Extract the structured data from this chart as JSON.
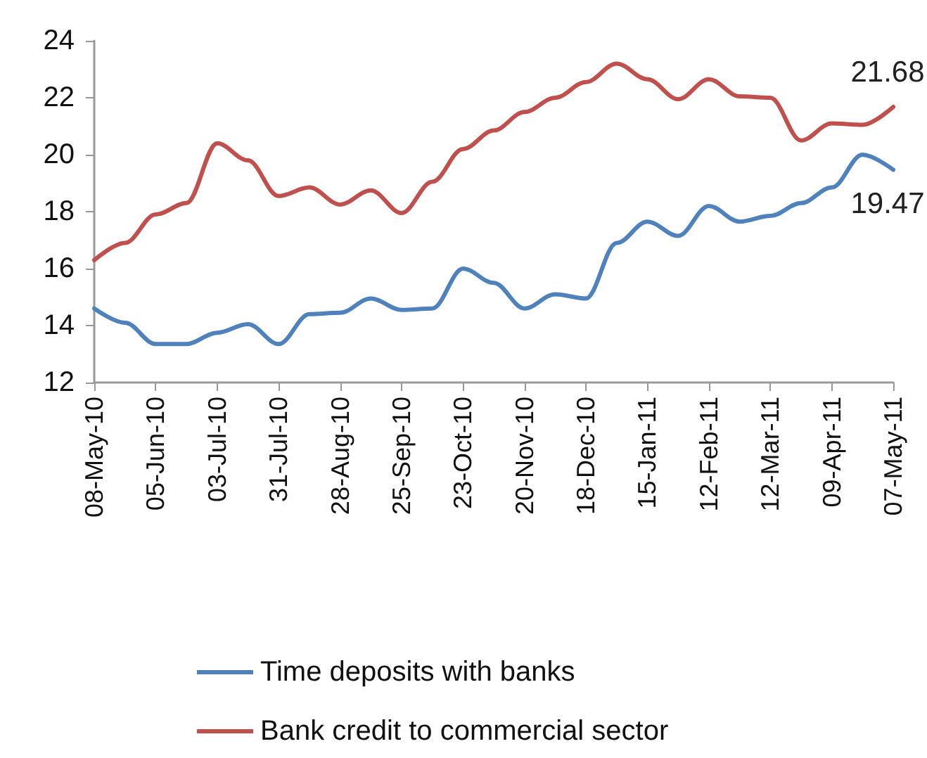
{
  "chart_data": {
    "type": "line",
    "categories": [
      "08-May-10",
      null,
      "05-Jun-10",
      null,
      "03-Jul-10",
      null,
      "31-Jul-10",
      null,
      "28-Aug-10",
      null,
      "25-Sep-10",
      null,
      "23-Oct-10",
      null,
      "20-Nov-10",
      null,
      "18-Dec-10",
      null,
      "15-Jan-11",
      null,
      "12-Feb-11",
      null,
      "12-Mar-11",
      null,
      "09-Apr-11",
      null,
      "07-May-11"
    ],
    "series": [
      {
        "name": "Time deposits with banks",
        "color": "#4f81bd",
        "values": [
          14.6,
          14.1,
          13.35,
          13.35,
          13.75,
          14.05,
          13.35,
          14.4,
          14.45,
          14.95,
          14.55,
          14.6,
          16.0,
          15.5,
          14.6,
          15.1,
          14.95,
          16.9,
          17.65,
          17.15,
          18.2,
          17.65,
          17.85,
          18.3,
          18.85,
          20.0,
          19.47
        ],
        "value_labels": [
          null,
          null,
          null,
          null,
          null,
          null,
          null,
          null,
          null,
          null,
          null,
          null,
          null,
          null,
          null,
          null,
          null,
          null,
          null,
          null,
          null,
          null,
          null,
          null,
          null,
          null,
          "19.47"
        ]
      },
      {
        "name": "Bank credit to commercial sector",
        "color": "#c0504d",
        "values": [
          16.3,
          16.9,
          17.9,
          18.3,
          20.4,
          19.8,
          18.55,
          18.85,
          18.25,
          18.75,
          17.95,
          19.05,
          20.2,
          20.85,
          21.5,
          22.0,
          22.55,
          23.2,
          22.65,
          21.95,
          22.65,
          22.05,
          22.0,
          20.5,
          21.1,
          21.05,
          21.68
        ],
        "value_labels": [
          null,
          null,
          null,
          null,
          null,
          null,
          null,
          null,
          null,
          null,
          null,
          null,
          null,
          null,
          null,
          null,
          null,
          null,
          null,
          null,
          null,
          null,
          null,
          null,
          null,
          null,
          "21.68"
        ]
      }
    ],
    "ylim": [
      12,
      24
    ],
    "yticks": [
      12,
      14,
      16,
      18,
      20,
      22,
      24
    ],
    "grid": false,
    "legend": "bottom",
    "marker": "none",
    "line_style": "solid"
  }
}
